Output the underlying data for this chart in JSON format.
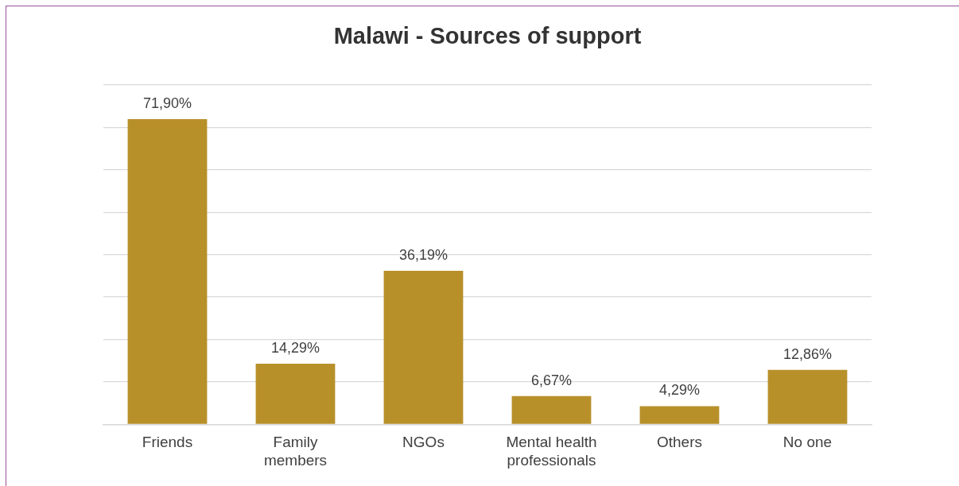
{
  "chart_data": {
    "type": "bar",
    "title": "Malawi - Sources of support",
    "categories": [
      "Friends",
      "Family members",
      "NGOs",
      "Mental health professionals",
      "Others",
      "No one"
    ],
    "values": [
      71.9,
      14.29,
      36.19,
      6.67,
      4.29,
      12.86
    ],
    "value_labels": [
      "71,90%",
      "14,29%",
      "36,19%",
      "6,67%",
      "4,29%",
      "12,86%"
    ],
    "color": "#b8902a",
    "ylim": [
      0,
      80
    ],
    "yticks": [
      {
        "value": 0,
        "label": null
      },
      {
        "value": 10,
        "label": null
      },
      {
        "value": 20,
        "label": null
      },
      {
        "value": 30,
        "label": null
      },
      {
        "value": 40,
        "label": null
      },
      {
        "value": 50,
        "label": null
      },
      {
        "value": 60,
        "label": null
      },
      {
        "value": 70,
        "label": null
      },
      {
        "value": 80,
        "label": null
      }
    ],
    "grid": "y",
    "tick_labels": "x",
    "legend": false
  }
}
